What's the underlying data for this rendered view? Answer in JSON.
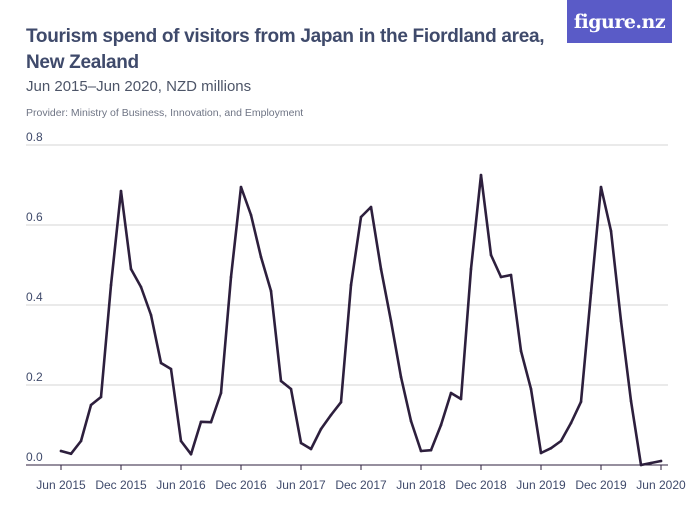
{
  "header": {
    "title": "Tourism spend of visitors from Japan in the Fiordland area, New Zealand",
    "subtitle": "Jun 2015–Jun 2020, NZD millions",
    "provider": "Provider: Ministry of Business, Innovation, and Employment",
    "logo": "figure.nz"
  },
  "colors": {
    "line": "#2d1f3d",
    "grid": "#d4d4d4",
    "axis": "#2d1f3d",
    "logo_bg": "#5a5bc7"
  },
  "chart_data": {
    "type": "line",
    "title": "Tourism spend of visitors from Japan in the Fiordland area, New Zealand",
    "subtitle": "Jun 2015–Jun 2020, NZD millions",
    "xlabel": "",
    "ylabel": "",
    "ylim": [
      0,
      0.8
    ],
    "yticks": [
      "0.0",
      "0.2",
      "0.4",
      "0.6",
      "0.8"
    ],
    "grid": "horizontal",
    "xtick_labels": [
      "Jun 2015",
      "Dec 2015",
      "Jun 2016",
      "Dec 2016",
      "Jun 2017",
      "Dec 2017",
      "Jun 2018",
      "Dec 2018",
      "Jun 2019",
      "Dec 2019",
      "Jun 2020"
    ],
    "x": [
      "Jun 2015",
      "Jul 2015",
      "Aug 2015",
      "Sep 2015",
      "Oct 2015",
      "Nov 2015",
      "Dec 2015",
      "Jan 2016",
      "Feb 2016",
      "Mar 2016",
      "Apr 2016",
      "May 2016",
      "Jun 2016",
      "Jul 2016",
      "Aug 2016",
      "Sep 2016",
      "Oct 2016",
      "Nov 2016",
      "Dec 2016",
      "Jan 2017",
      "Feb 2017",
      "Mar 2017",
      "Apr 2017",
      "May 2017",
      "Jun 2017",
      "Jul 2017",
      "Aug 2017",
      "Sep 2017",
      "Oct 2017",
      "Nov 2017",
      "Dec 2017",
      "Jan 2018",
      "Feb 2018",
      "Mar 2018",
      "Apr 2018",
      "May 2018",
      "Jun 2018",
      "Jul 2018",
      "Aug 2018",
      "Sep 2018",
      "Oct 2018",
      "Nov 2018",
      "Dec 2018",
      "Jan 2019",
      "Feb 2019",
      "Mar 2019",
      "Apr 2019",
      "May 2019",
      "Jun 2019",
      "Jul 2019",
      "Aug 2019",
      "Sep 2019",
      "Oct 2019",
      "Nov 2019",
      "Dec 2019",
      "Jan 2020",
      "Feb 2020",
      "Mar 2020",
      "Apr 2020",
      "May 2020",
      "Jun 2020"
    ],
    "series": [
      {
        "values": [
          0.035,
          0.028,
          0.06,
          0.15,
          0.17,
          0.45,
          0.685,
          0.49,
          0.445,
          0.375,
          0.255,
          0.24,
          0.06,
          0.027,
          0.108,
          0.107,
          0.18,
          0.47,
          0.695,
          0.625,
          0.52,
          0.435,
          0.21,
          0.19,
          0.055,
          0.04,
          0.09,
          0.125,
          0.157,
          0.45,
          0.62,
          0.645,
          0.49,
          0.36,
          0.22,
          0.11,
          0.035,
          0.037,
          0.1,
          0.18,
          0.165,
          0.49,
          0.725,
          0.525,
          0.47,
          0.475,
          0.285,
          0.19,
          0.03,
          0.042,
          0.06,
          0.105,
          0.158,
          0.43,
          0.695,
          0.585,
          0.36,
          0.16,
          0.0,
          0.005,
          0.01
        ]
      }
    ]
  }
}
